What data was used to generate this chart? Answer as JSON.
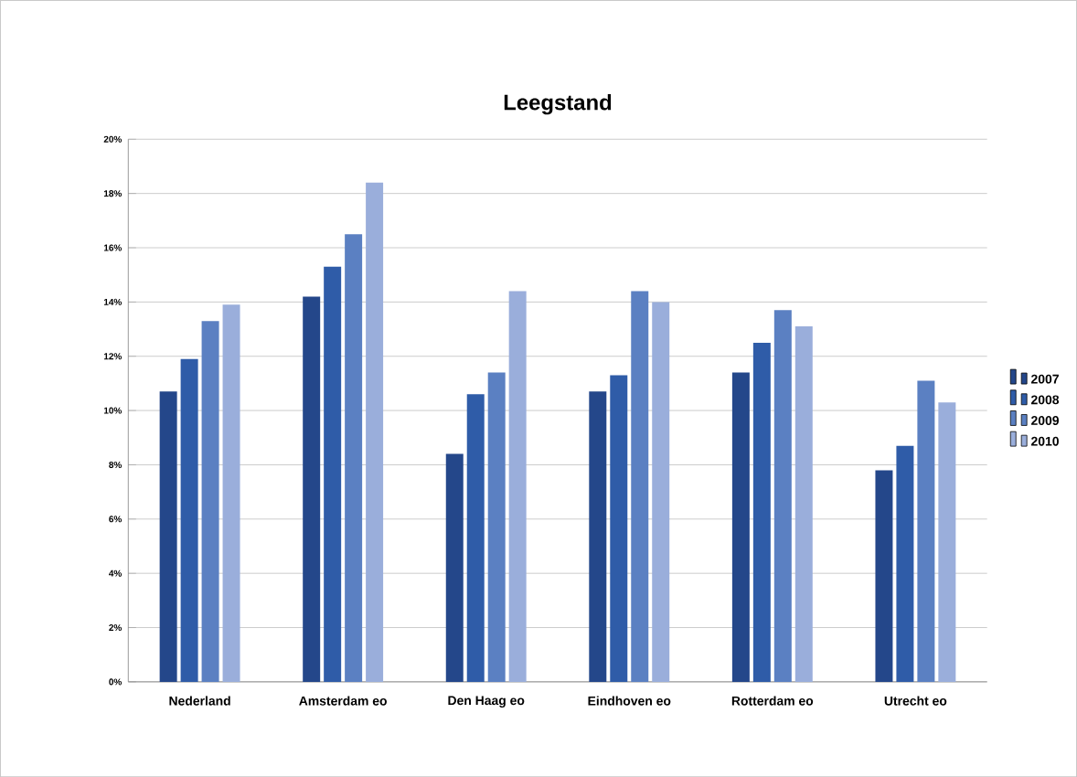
{
  "chart_data": {
    "type": "bar",
    "title": "Leegstand",
    "categories": [
      "Nederland",
      "Amsterdam eo",
      "Den Haag eo",
      "Eindhoven eo",
      "Rotterdam eo",
      "Utrecht eo"
    ],
    "series": [
      {
        "name": "2007",
        "color": "#24478a",
        "values": [
          10.7,
          14.2,
          8.4,
          10.7,
          11.4,
          7.8
        ]
      },
      {
        "name": "2008",
        "color": "#2f5ca8",
        "values": [
          11.9,
          15.3,
          10.6,
          11.3,
          12.5,
          8.7
        ]
      },
      {
        "name": "2009",
        "color": "#5b80c2",
        "values": [
          13.3,
          16.5,
          11.4,
          14.4,
          13.7,
          11.1
        ]
      },
      {
        "name": "2010",
        "color": "#9aaedb",
        "values": [
          13.9,
          18.4,
          14.4,
          14.0,
          13.1,
          10.3
        ]
      }
    ],
    "ylim": [
      0,
      20
    ],
    "yticks": [
      {
        "value": 0,
        "label": "0%"
      },
      {
        "value": 2,
        "label": "2%"
      },
      {
        "value": 4,
        "label": "4%"
      },
      {
        "value": 6,
        "label": "6%"
      },
      {
        "value": 8,
        "label": "8%"
      },
      {
        "value": 10,
        "label": "10%"
      },
      {
        "value": 12,
        "label": "12%"
      },
      {
        "value": 14,
        "label": "14%"
      },
      {
        "value": 16,
        "label": "16%"
      },
      {
        "value": 18,
        "label": "18%"
      },
      {
        "value": 20,
        "label": "20%"
      }
    ],
    "grid": "y",
    "legend": "right"
  }
}
